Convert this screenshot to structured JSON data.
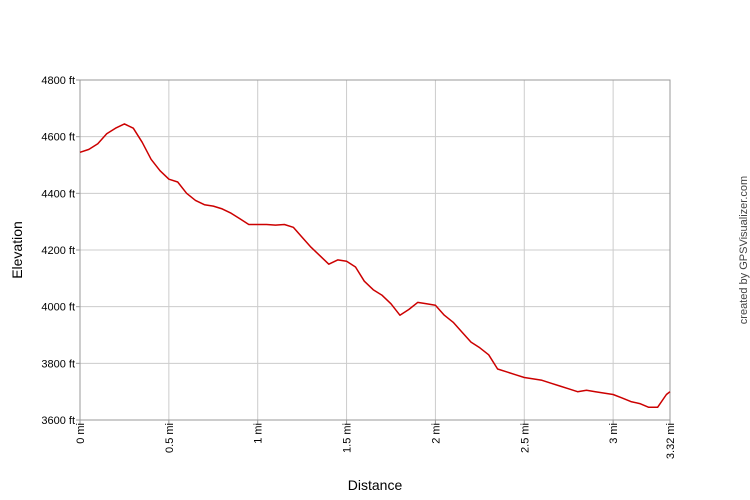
{
  "chart_data": {
    "type": "line",
    "title": "",
    "xlabel": "Distance",
    "ylabel": "Elevation",
    "credit": "created by GPSVisualizer.com",
    "xlim": [
      0,
      3.32
    ],
    "ylim": [
      3600,
      4800
    ],
    "x_ticks": [
      0,
      0.5,
      1,
      1.5,
      2,
      2.5,
      3,
      3.32
    ],
    "x_tick_labels": [
      "0 mi",
      "0.5 mi",
      "1 mi",
      "1.5 mi",
      "2 mi",
      "2.5 mi",
      "3 mi",
      "3.32 mi"
    ],
    "y_ticks": [
      3600,
      3800,
      4000,
      4200,
      4400,
      4600,
      4800
    ],
    "y_tick_labels": [
      "3600 ft",
      "3800 ft",
      "4000 ft",
      "4200 ft",
      "4400 ft",
      "4600 ft",
      "4800 ft"
    ],
    "grid": true,
    "line_color": "#cc0000",
    "series": [
      {
        "x": [
          0,
          0.05,
          0.1,
          0.15,
          0.2,
          0.25,
          0.3,
          0.35,
          0.4,
          0.45,
          0.5,
          0.55,
          0.6,
          0.65,
          0.7,
          0.75,
          0.8,
          0.85,
          0.9,
          0.95,
          1.0,
          1.05,
          1.1,
          1.15,
          1.2,
          1.25,
          1.3,
          1.35,
          1.4,
          1.45,
          1.5,
          1.55,
          1.6,
          1.65,
          1.7,
          1.75,
          1.8,
          1.85,
          1.9,
          1.95,
          2.0,
          2.05,
          2.1,
          2.15,
          2.2,
          2.25,
          2.3,
          2.35,
          2.4,
          2.45,
          2.5,
          2.55,
          2.6,
          2.65,
          2.7,
          2.75,
          2.8,
          2.85,
          2.9,
          2.95,
          3.0,
          3.05,
          3.1,
          3.15,
          3.2,
          3.25,
          3.3,
          3.32
        ],
        "y": [
          4545,
          4555,
          4575,
          4610,
          4630,
          4645,
          4630,
          4580,
          4520,
          4480,
          4450,
          4440,
          4400,
          4375,
          4360,
          4355,
          4345,
          4330,
          4310,
          4290,
          4290,
          4290,
          4288,
          4290,
          4280,
          4245,
          4210,
          4180,
          4150,
          4165,
          4160,
          4140,
          4090,
          4060,
          4040,
          4010,
          3970,
          3990,
          4015,
          4010,
          4005,
          3970,
          3945,
          3910,
          3875,
          3855,
          3830,
          3780,
          3770,
          3760,
          3750,
          3745,
          3740,
          3730,
          3720,
          3710,
          3700,
          3705,
          3700,
          3695,
          3690,
          3678,
          3665,
          3658,
          3645,
          3645,
          3690,
          3700
        ]
      }
    ]
  }
}
